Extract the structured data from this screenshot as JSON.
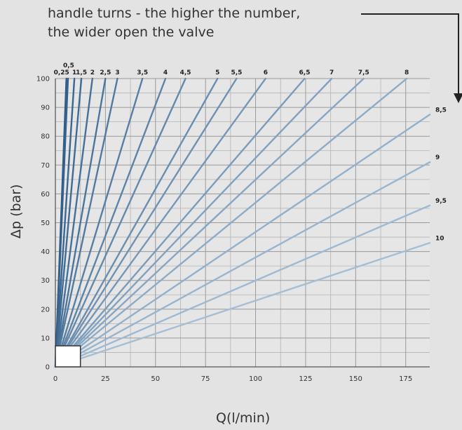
{
  "title": {
    "line1": "handle turns - the higher the number,",
    "line2": "the wider open the valve"
  },
  "chart_data": {
    "type": "line",
    "xlabel": "Q(l/min)",
    "ylabel": "Δp (bar)",
    "xlim": [
      0,
      187
    ],
    "ylim": [
      0,
      100
    ],
    "x_ticks": [
      0,
      25,
      50,
      75,
      100,
      125,
      150,
      175
    ],
    "y_ticks": [
      0,
      10,
      20,
      30,
      40,
      50,
      60,
      70,
      80,
      90,
      100
    ],
    "x_grid_minor": [
      12.5,
      37.5,
      62.5,
      87.5,
      112.5,
      137.5,
      162.5
    ],
    "y_grid_minor": [
      5,
      15,
      25,
      35,
      45,
      55,
      65,
      75,
      85,
      95
    ],
    "grid": true,
    "colors": {
      "dark": "#2f5c88",
      "light": "#a3bfd6",
      "arrow": "#222222",
      "box": "#333333"
    },
    "series": [
      {
        "name": "0,25",
        "points": [
          [
            0,
            0
          ],
          [
            5.5,
            100
          ]
        ]
      },
      {
        "name": "0,5",
        "points": [
          [
            0,
            0
          ],
          [
            6.3,
            100
          ]
        ]
      },
      {
        "name": "1",
        "points": [
          [
            0,
            0
          ],
          [
            9.5,
            100
          ]
        ]
      },
      {
        "name": "1,5",
        "points": [
          [
            0,
            0
          ],
          [
            13,
            100
          ]
        ]
      },
      {
        "name": "2",
        "points": [
          [
            0,
            0
          ],
          [
            18.5,
            100
          ]
        ]
      },
      {
        "name": "2,5",
        "points": [
          [
            0,
            0
          ],
          [
            25,
            100
          ]
        ]
      },
      {
        "name": "3",
        "points": [
          [
            0,
            0
          ],
          [
            31,
            100
          ]
        ]
      },
      {
        "name": "3,5",
        "points": [
          [
            0,
            0
          ],
          [
            43.5,
            100
          ]
        ]
      },
      {
        "name": "4",
        "points": [
          [
            0,
            0
          ],
          [
            55,
            100
          ]
        ]
      },
      {
        "name": "4,5",
        "points": [
          [
            0,
            0
          ],
          [
            65,
            100
          ]
        ]
      },
      {
        "name": "5",
        "points": [
          [
            0,
            0
          ],
          [
            81,
            100
          ]
        ]
      },
      {
        "name": "5,5",
        "points": [
          [
            0,
            0
          ],
          [
            90.5,
            100
          ]
        ]
      },
      {
        "name": "6",
        "points": [
          [
            0,
            0
          ],
          [
            105,
            100
          ]
        ]
      },
      {
        "name": "6,5",
        "points": [
          [
            0,
            0
          ],
          [
            124.5,
            100
          ]
        ]
      },
      {
        "name": "7",
        "points": [
          [
            0,
            0
          ],
          [
            138,
            100
          ]
        ]
      },
      {
        "name": "7,5",
        "points": [
          [
            0,
            0
          ],
          [
            154,
            100
          ]
        ]
      },
      {
        "name": "8",
        "points": [
          [
            0,
            0
          ],
          [
            175.5,
            100
          ]
        ]
      },
      {
        "name": "8,5",
        "points": [
          [
            0,
            0
          ],
          [
            187,
            87.5
          ]
        ]
      },
      {
        "name": "9",
        "points": [
          [
            0,
            0
          ],
          [
            187,
            71
          ]
        ]
      },
      {
        "name": "9,5",
        "points": [
          [
            0,
            0
          ],
          [
            187,
            56
          ]
        ]
      },
      {
        "name": "10",
        "points": [
          [
            0,
            0
          ],
          [
            187,
            43
          ]
        ]
      }
    ],
    "highlight_box": {
      "x": [
        0,
        12.5
      ],
      "y": [
        0,
        7.3
      ]
    }
  }
}
